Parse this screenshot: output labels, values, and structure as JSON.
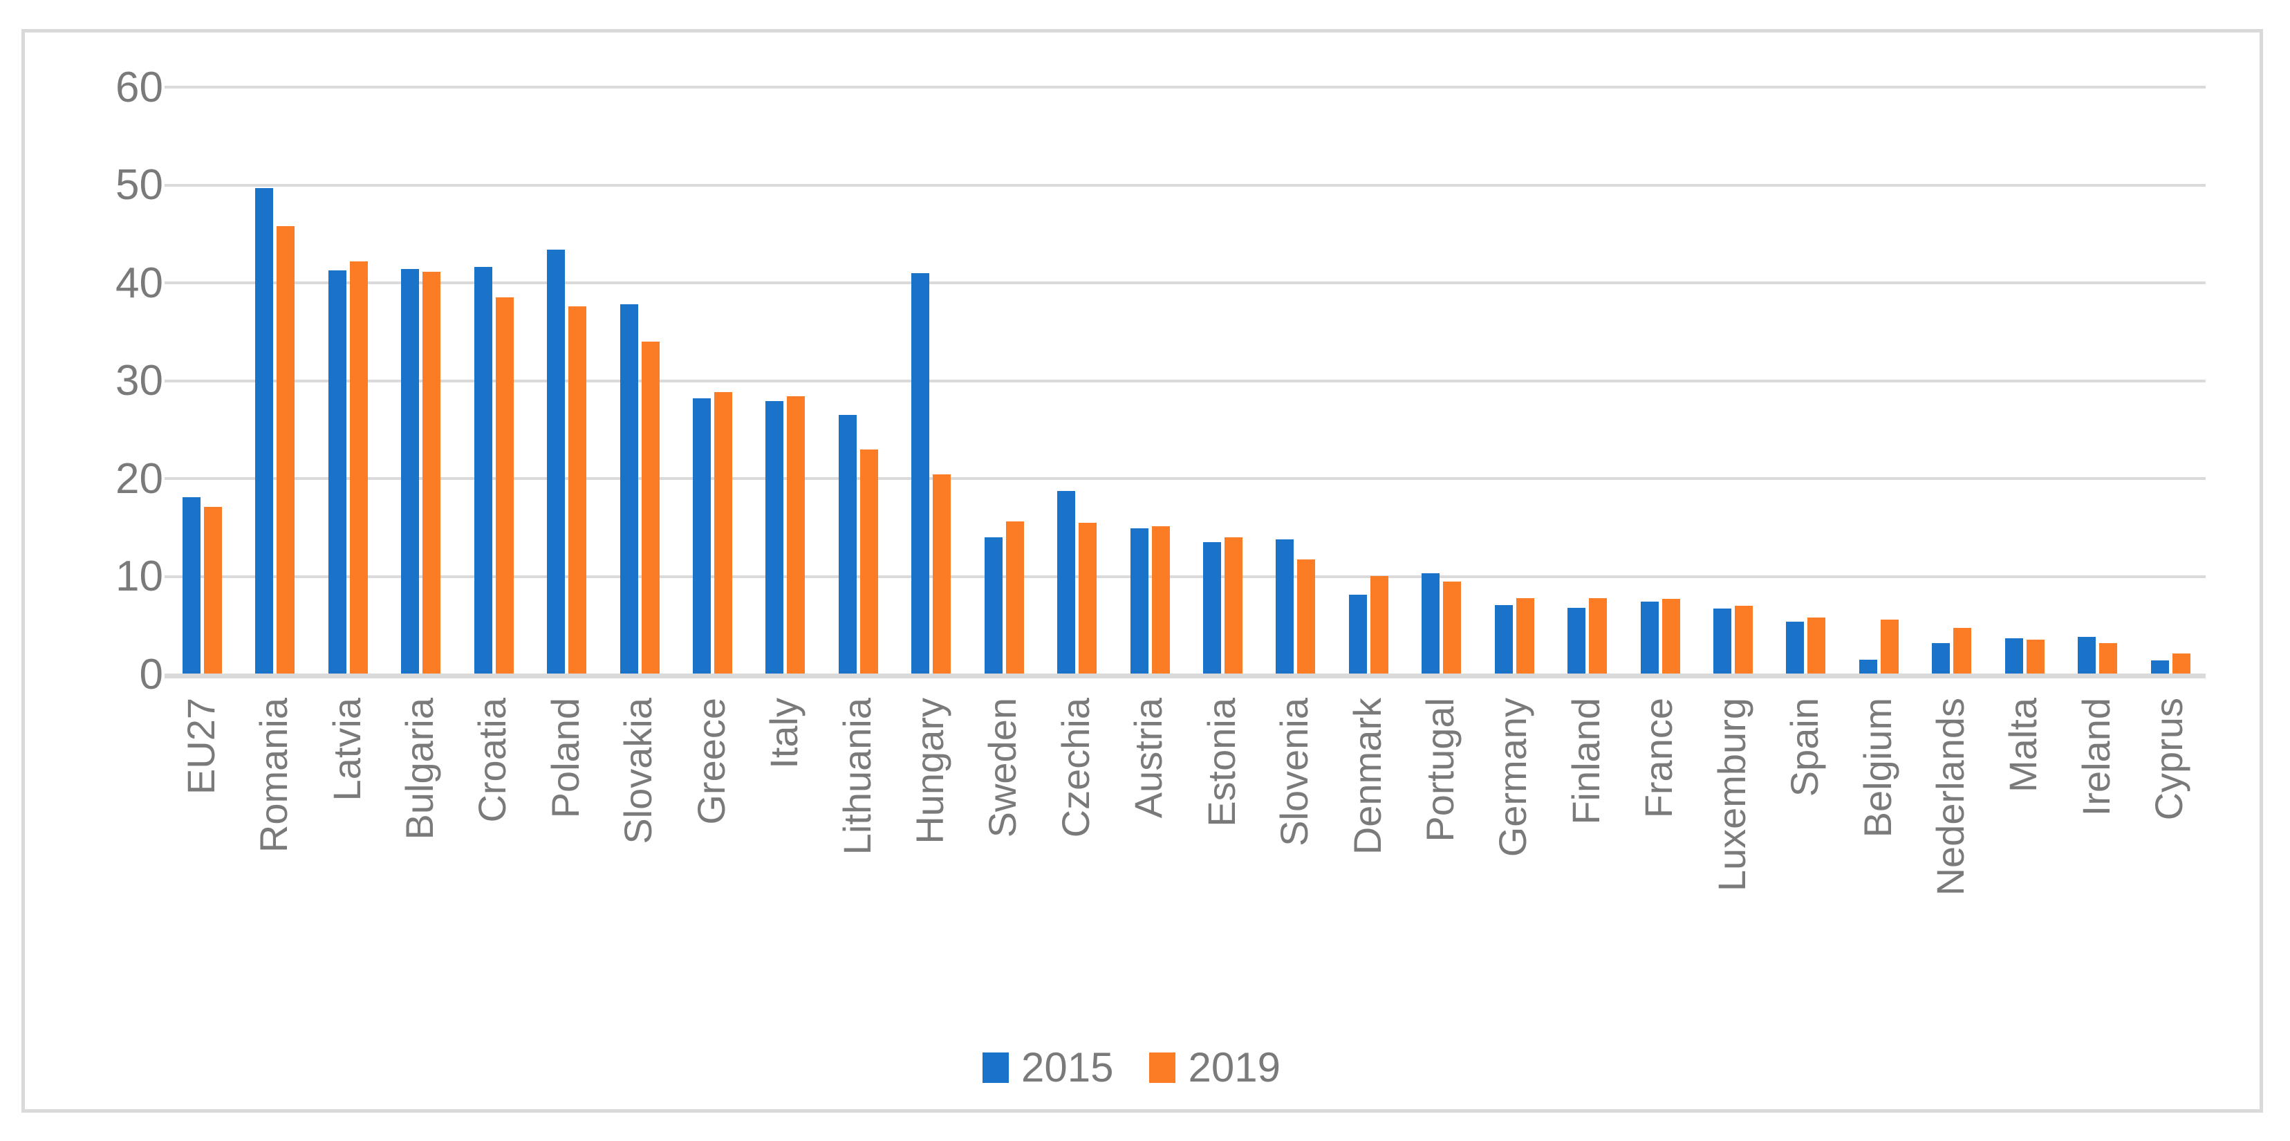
{
  "chart_data": {
    "type": "bar",
    "title": "",
    "xlabel": "",
    "ylabel": "",
    "categories": [
      "EU27",
      "Romania",
      "Latvia",
      "Bulgaria",
      "Croatia",
      "Poland",
      "Slovakia",
      "Greece",
      "Italy",
      "Lithuania",
      "Hungary",
      "Sweden",
      "Czechia",
      "Austria",
      "Estonia",
      "Slovenia",
      "Denmark",
      "Portugal",
      "Germany",
      "Finland",
      "France",
      "Luxemburg",
      "Spain",
      "Belgium",
      "Nederlands",
      "Malta",
      "Ireland",
      "Cyprus"
    ],
    "series": [
      {
        "name": "2015",
        "color": "#1A73C9",
        "values": [
          18.1,
          49.7,
          41.3,
          41.4,
          41.6,
          43.4,
          37.8,
          28.2,
          27.9,
          26.5,
          41.0,
          14.0,
          18.7,
          14.9,
          13.5,
          13.8,
          8.1,
          10.3,
          7.1,
          6.8,
          7.4,
          6.7,
          5.4,
          1.5,
          3.2,
          3.7,
          3.8,
          1.4
        ]
      },
      {
        "name": "2019",
        "color": "#FC7C26",
        "values": [
          17.1,
          45.8,
          42.2,
          41.1,
          38.5,
          37.6,
          34.0,
          28.8,
          28.4,
          23.0,
          20.4,
          15.6,
          15.5,
          15.1,
          14.0,
          11.7,
          10.0,
          9.5,
          7.8,
          7.8,
          7.7,
          7.0,
          5.8,
          5.6,
          4.7,
          3.5,
          3.2,
          2.1
        ]
      }
    ],
    "ylim": [
      0,
      60
    ],
    "yticks": [
      0,
      10,
      20,
      30,
      40,
      50,
      60
    ],
    "grid": true,
    "legend_position": "bottom-center",
    "grid_color": "#DADADA",
    "border_color": "#D9D9D9",
    "text_color": "#7A7A7A",
    "background_color": "#FFFFFF"
  }
}
